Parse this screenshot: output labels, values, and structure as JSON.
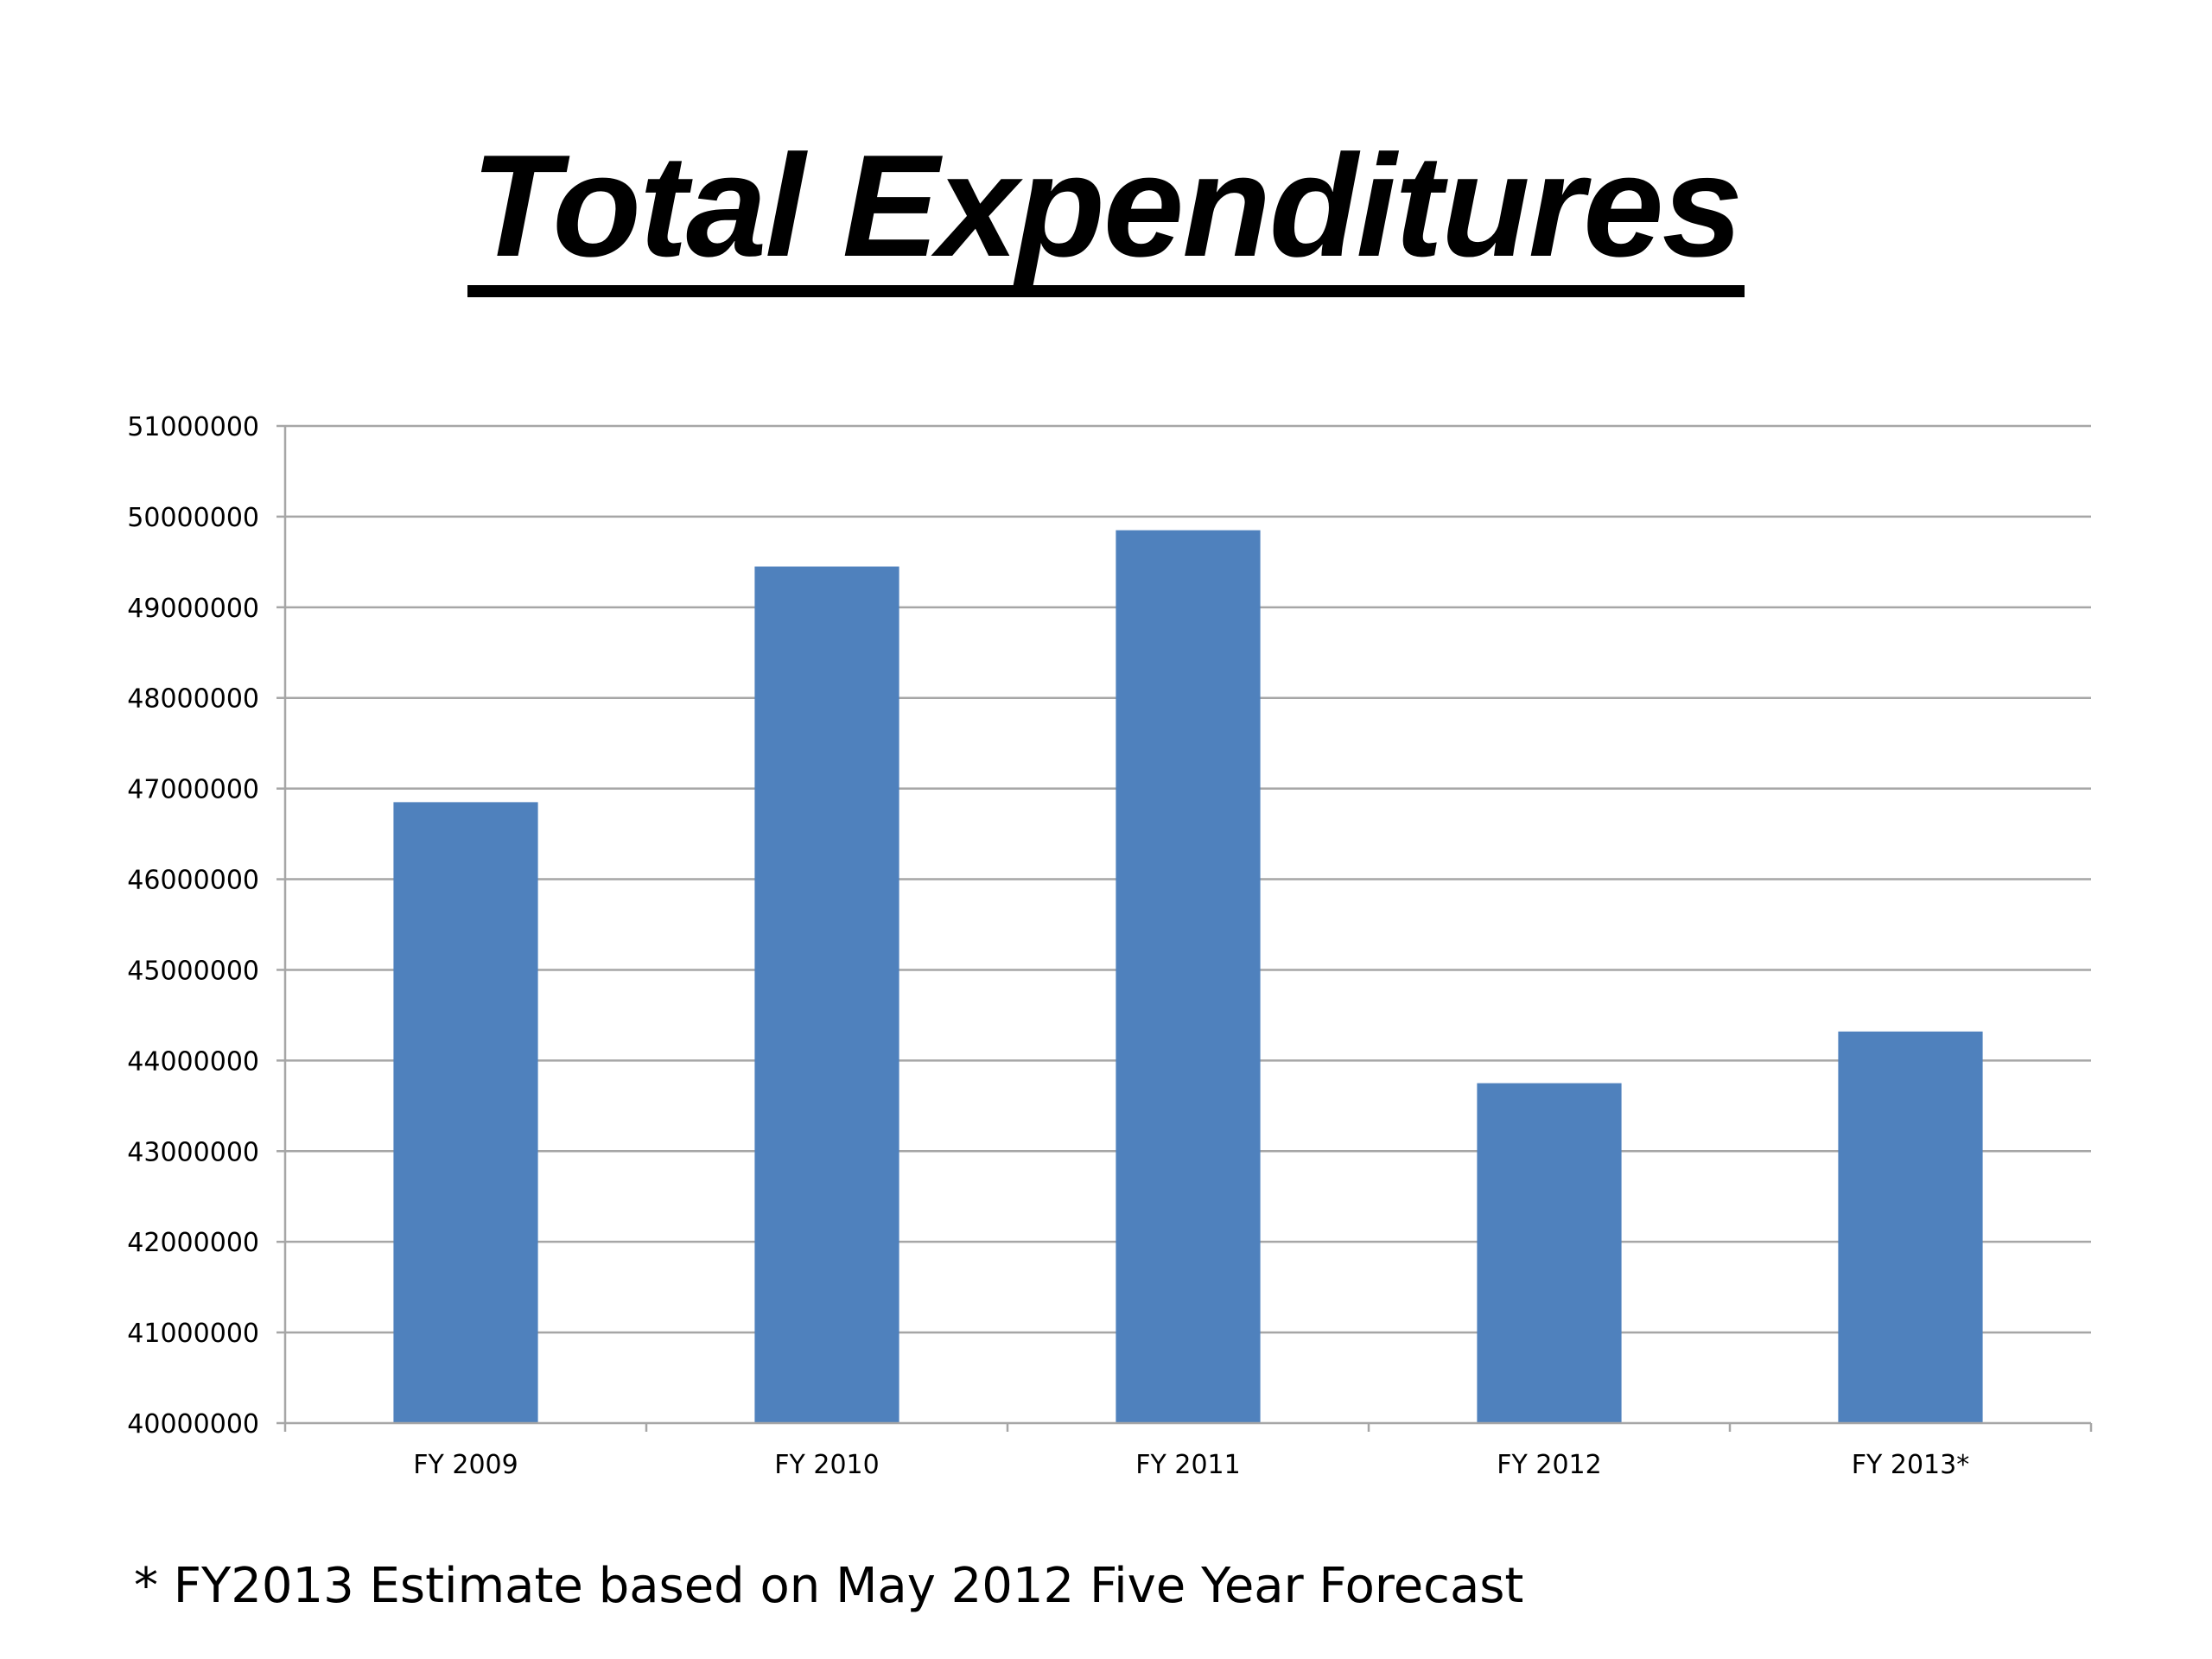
{
  "title": "Total Expenditures",
  "footnote": "* FY2013 Estimate based on May 2012 Five Year Forecast",
  "colors": {
    "bar": "#4f81bd",
    "grid": "#a6a6a6",
    "axis": "#a6a6a6",
    "text": "#000000"
  },
  "chart_data": {
    "type": "bar",
    "categories": [
      "FY 2009",
      "FY 2010",
      "FY 2011",
      "FY 2012",
      "FY 2013*"
    ],
    "values": [
      46850000,
      49450000,
      49850000,
      43750000,
      44320000
    ],
    "ylim": [
      40000000,
      51000000
    ],
    "yticks": [
      "40000000",
      "41000000",
      "42000000",
      "43000000",
      "44000000",
      "45000000",
      "46000000",
      "47000000",
      "48000000",
      "49000000",
      "50000000",
      "51000000"
    ],
    "grid": true,
    "legend": "none",
    "xlabel": "",
    "ylabel": ""
  }
}
